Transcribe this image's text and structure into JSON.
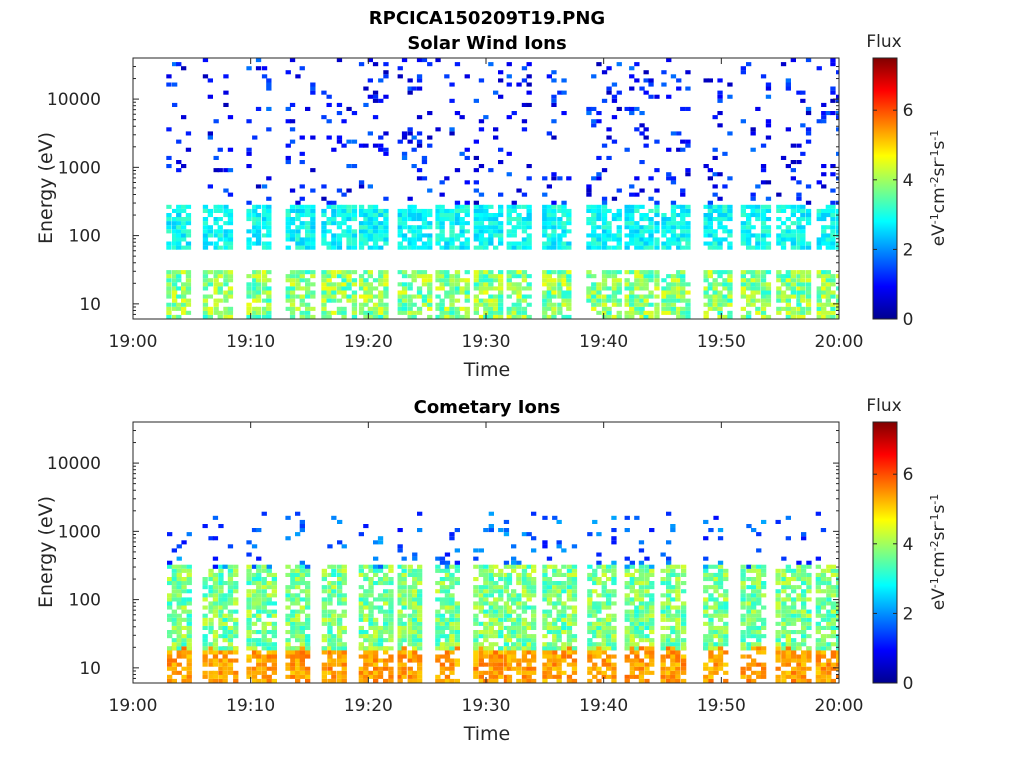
{
  "figure": {
    "title": "RPCICA150209T19.PNG"
  },
  "chart_data": [
    {
      "type": "heatmap",
      "title": "Solar Wind Ions",
      "xlabel": "Time",
      "ylabel": "Energy (eV)",
      "x_ticks": [
        "19:00",
        "19:10",
        "19:20",
        "19:30",
        "19:40",
        "19:50",
        "20:00"
      ],
      "xlim": [
        "19:00",
        "20:00"
      ],
      "y_scale": "log",
      "ylim": [
        6,
        40000
      ],
      "y_ticks": [
        10,
        100,
        1000,
        10000
      ],
      "y_tick_labels": [
        "10",
        "100",
        "1000",
        "10000"
      ],
      "colorbar": {
        "label": "Flux",
        "units": "eV-1cm-2sr-1s-1",
        "range": [
          0,
          7.5
        ],
        "ticks": [
          0,
          2,
          4,
          6
        ],
        "colormap": "jet"
      },
      "sweep_minutes": [
        3.7,
        6.8,
        10.5,
        13.8,
        16.9,
        20.0,
        23.3,
        26.5,
        29.8,
        32.6,
        35.6,
        39.4,
        42.6,
        45.7,
        49.3,
        52.5,
        55.5,
        58.9
      ],
      "populations": [
        {
          "name": "low-energy band",
          "energy_range_eV": [
            6,
            28
          ],
          "flux_range": [
            3.0,
            4.6
          ]
        },
        {
          "name": "mid-energy band",
          "energy_range_eV": [
            70,
            250
          ],
          "flux_range": [
            2.4,
            3.3
          ]
        },
        {
          "name": "sparse high-energy counts",
          "energy_range_eV": [
            300,
            38000
          ],
          "flux_range": [
            0.4,
            1.8
          ]
        }
      ],
      "grid": false
    },
    {
      "type": "heatmap",
      "title": "Cometary Ions",
      "xlabel": "Time",
      "ylabel": "Energy (eV)",
      "x_ticks": [
        "19:00",
        "19:10",
        "19:20",
        "19:30",
        "19:40",
        "19:50",
        "20:00"
      ],
      "xlim": [
        "19:00",
        "20:00"
      ],
      "y_scale": "log",
      "ylim": [
        6,
        40000
      ],
      "y_ticks": [
        10,
        100,
        1000,
        10000
      ],
      "y_tick_labels": [
        "10",
        "100",
        "1000",
        "10000"
      ],
      "colorbar": {
        "label": "Flux",
        "units": "eV-1cm-2sr-1s-1",
        "range": [
          0,
          7.5
        ],
        "ticks": [
          0,
          2,
          4,
          6
        ],
        "colormap": "jet"
      },
      "sweep_minutes": [
        3.7,
        6.8,
        10.5,
        13.8,
        16.9,
        20.0,
        23.3,
        26.5,
        29.8,
        32.6,
        35.6,
        39.4,
        42.6,
        45.7,
        49.3,
        52.5,
        55.5,
        58.9
      ],
      "populations": [
        {
          "name": "peak flux band",
          "energy_range_eV": [
            6,
            20
          ],
          "flux_range": [
            5.0,
            5.8
          ]
        },
        {
          "name": "main band",
          "energy_range_eV": [
            20,
            300
          ],
          "flux_range": [
            3.0,
            4.4
          ]
        },
        {
          "name": "sparse high-energy counts",
          "energy_range_eV": [
            300,
            1900
          ],
          "flux_range": [
            1.0,
            2.2
          ]
        }
      ],
      "grid": false
    }
  ]
}
